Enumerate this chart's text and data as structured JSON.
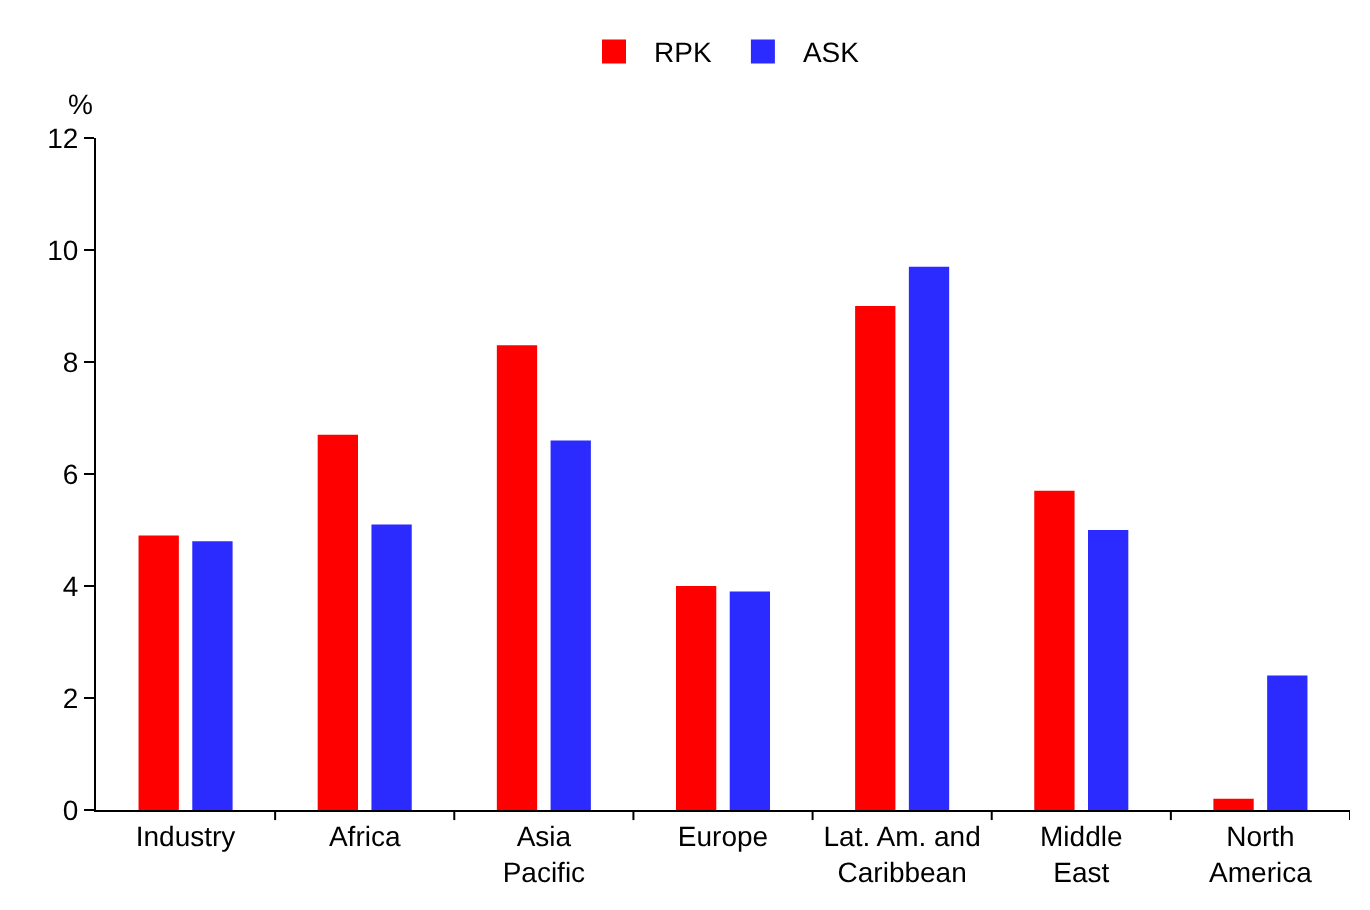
{
  "chart_data": {
    "type": "bar",
    "ylabel": "%",
    "categories": [
      "Industry",
      "Africa",
      "Asia\nPacific",
      "Europe",
      "Lat. Am. and\nCaribbean",
      "Middle\nEast",
      "North\nAmerica"
    ],
    "series": [
      {
        "name": "RPK",
        "color": "#ff0000",
        "values": [
          4.9,
          6.7,
          8.3,
          4.0,
          9.0,
          5.7,
          0.2
        ]
      },
      {
        "name": "ASK",
        "color": "#2b2bff",
        "values": [
          4.8,
          5.1,
          6.6,
          3.9,
          9.7,
          5.0,
          2.4
        ]
      }
    ],
    "ylim": [
      0,
      12
    ],
    "yticks": [
      0,
      2,
      4,
      6,
      8,
      10,
      12
    ],
    "grid": false,
    "legend": "top"
  }
}
